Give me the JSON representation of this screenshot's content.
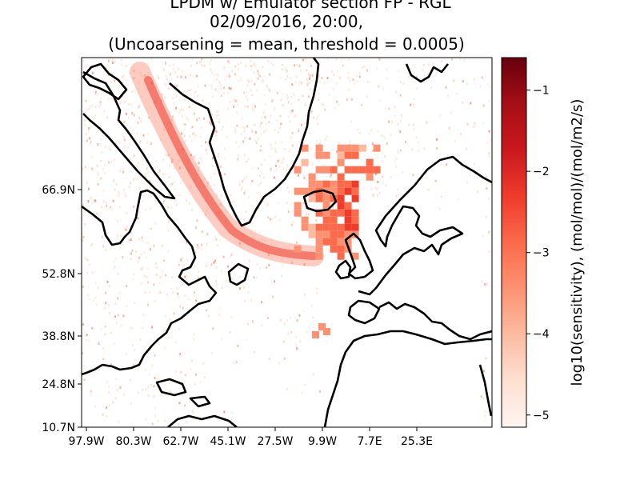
{
  "chart_data": {
    "type": "heatmap",
    "title_lines": [
      "LPDM w/ Emulator section FP - RGL",
      "02/09/2016, 20:00,",
      "(Uncoarsening = mean, threshold = 0.0005)"
    ],
    "x_ticks": [
      "97.9W",
      "80.3W",
      "62.7W",
      "45.1W",
      "27.5W",
      "9.9W",
      "7.7E",
      "25.3E"
    ],
    "y_ticks": [
      "10.7N",
      "24.8N",
      "38.8N",
      "52.8N",
      "66.9N"
    ],
    "x_range_deg": [
      -97.9,
      42.9
    ],
    "y_range_deg": [
      10.7,
      79.1
    ],
    "colorbar": {
      "label": "log10(sensitivity), (mol/mol)/(mol/m2/s)",
      "ticks": [
        "−5",
        "−4",
        "−3",
        "−2",
        "−1"
      ],
      "tick_values": [
        -5,
        -4,
        -3,
        -2,
        -1
      ],
      "range": [
        -5.15,
        -0.6
      ],
      "colormap": "Reds",
      "colors": [
        "#fff5f0",
        "#fee0d2",
        "#fcbba1",
        "#fc9272",
        "#fb6a4a",
        "#ef3b2c",
        "#cb181d",
        "#a50f15",
        "#67000d"
      ]
    },
    "site_marker_deg": [
      -2.5,
      51.99
    ],
    "coarse_region_deg": {
      "lon": [
        -25.0,
        -5.0
      ],
      "lat": [
        42.0,
        63.0
      ]
    }
  }
}
